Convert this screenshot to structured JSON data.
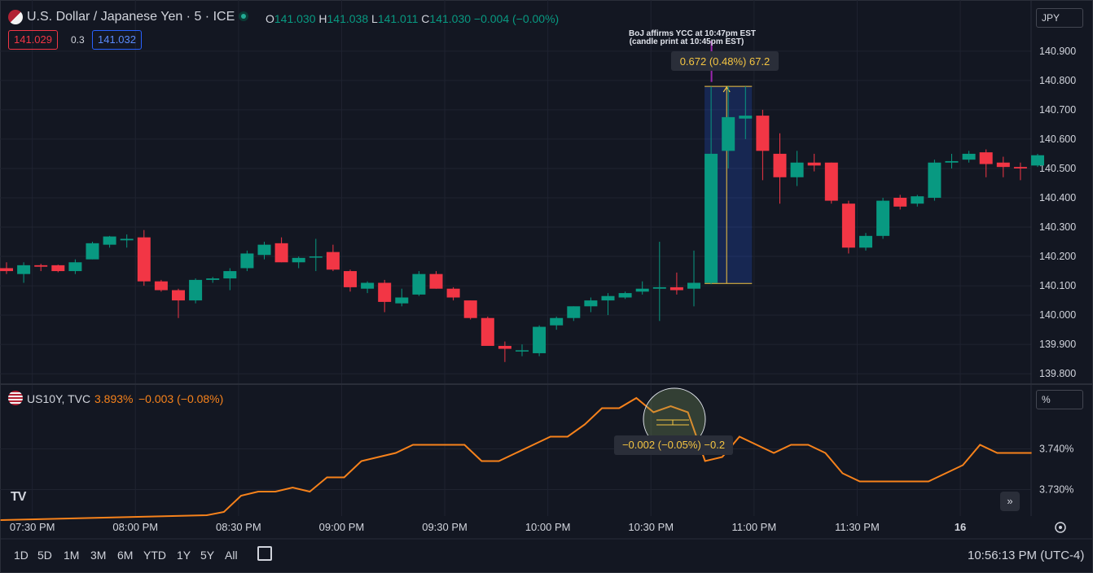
{
  "header": {
    "symbol_title": "U.S. Dollar / Japanese Yen · 5 · ICE",
    "ohlc": {
      "o_label": "O",
      "o": "141.030",
      "h_label": "H",
      "h": "141.038",
      "l_label": "L",
      "l": "141.011",
      "c_label": "C",
      "c": "141.030",
      "change": "−0.004 (−0.00%)"
    },
    "bid": "141.029",
    "spread": "0.3",
    "ask": "141.032",
    "currency_button": "JPY"
  },
  "sub_pane": {
    "symbol_title": "US10Y, TVC",
    "value": "3.893%",
    "change": "−0.003 (−0.08%)",
    "unit_button": "%"
  },
  "annotations": {
    "note_line1": "BoJ affirms YCC at 10:47pm EST",
    "note_line2": "(candle print at 10:45pm EST)",
    "measure_main": "0.672 (0.48%) 67.2",
    "measure_sub": "−0.002 (−0.05%) −0.2"
  },
  "footer": {
    "timeframes": [
      "1D",
      "5D",
      "1M",
      "3M",
      "6M",
      "YTD",
      "1Y",
      "5Y",
      "All"
    ],
    "clock": "10:56:13 PM (UTC-4)",
    "nav_glyph": "»"
  },
  "colors": {
    "background": "#131722",
    "up": "#089981",
    "down": "#f23645",
    "yield_line": "#f7821b",
    "measure": "#f5c542",
    "grid": "#1f2330"
  },
  "chart_data": [
    {
      "type": "candlestick",
      "title": "U.S. Dollar / Japanese Yen · 5 · ICE",
      "x_tick_labels": [
        "07:30 PM",
        "08:00 PM",
        "08:30 PM",
        "09:00 PM",
        "09:30 PM",
        "10:00 PM",
        "10:30 PM",
        "11:00 PM",
        "11:30 PM",
        "16"
      ],
      "y_tick_labels": [
        "140.900",
        "140.800",
        "140.700",
        "140.600",
        "140.500",
        "140.400",
        "140.300",
        "140.200",
        "140.100",
        "140.000",
        "139.900",
        "139.800"
      ],
      "ylim": [
        139.77,
        140.98
      ],
      "grid": true,
      "candles": [
        {
          "o": 140.16,
          "h": 140.18,
          "l": 140.14,
          "c": 140.15
        },
        {
          "o": 140.14,
          "h": 140.18,
          "l": 140.11,
          "c": 140.17
        },
        {
          "o": 140.17,
          "h": 140.175,
          "l": 140.15,
          "c": 140.165
        },
        {
          "o": 140.17,
          "h": 140.172,
          "l": 140.146,
          "c": 140.15
        },
        {
          "o": 140.15,
          "h": 140.19,
          "l": 140.14,
          "c": 140.18
        },
        {
          "o": 140.19,
          "h": 140.25,
          "l": 140.19,
          "c": 140.245
        },
        {
          "o": 140.24,
          "h": 140.27,
          "l": 140.23,
          "c": 140.268
        },
        {
          "o": 140.255,
          "h": 140.275,
          "l": 140.23,
          "c": 140.26
        },
        {
          "o": 140.265,
          "h": 140.29,
          "l": 140.1,
          "c": 140.115
        },
        {
          "o": 140.115,
          "h": 140.12,
          "l": 140.08,
          "c": 140.085
        },
        {
          "o": 140.085,
          "h": 140.09,
          "l": 139.99,
          "c": 140.05
        },
        {
          "o": 140.05,
          "h": 140.125,
          "l": 140.04,
          "c": 140.12
        },
        {
          "o": 140.12,
          "h": 140.13,
          "l": 140.11,
          "c": 140.125
        },
        {
          "o": 140.125,
          "h": 140.16,
          "l": 140.085,
          "c": 140.15
        },
        {
          "o": 140.16,
          "h": 140.22,
          "l": 140.15,
          "c": 140.21
        },
        {
          "o": 140.205,
          "h": 140.25,
          "l": 140.19,
          "c": 140.24
        },
        {
          "o": 140.245,
          "h": 140.265,
          "l": 140.18,
          "c": 140.18
        },
        {
          "o": 140.18,
          "h": 140.2,
          "l": 140.16,
          "c": 140.195
        },
        {
          "o": 140.2,
          "h": 140.26,
          "l": 140.15,
          "c": 140.2
        },
        {
          "o": 140.215,
          "h": 140.24,
          "l": 140.15,
          "c": 140.155
        },
        {
          "o": 140.15,
          "h": 140.155,
          "l": 140.08,
          "c": 140.095
        },
        {
          "o": 140.09,
          "h": 140.115,
          "l": 140.075,
          "c": 140.11
        },
        {
          "o": 140.11,
          "h": 140.12,
          "l": 140.01,
          "c": 140.045
        },
        {
          "o": 140.04,
          "h": 140.09,
          "l": 140.03,
          "c": 140.06
        },
        {
          "o": 140.07,
          "h": 140.15,
          "l": 140.065,
          "c": 140.14
        },
        {
          "o": 140.14,
          "h": 140.15,
          "l": 140.09,
          "c": 140.09
        },
        {
          "o": 140.09,
          "h": 140.095,
          "l": 140.05,
          "c": 140.06
        },
        {
          "o": 140.05,
          "h": 140.05,
          "l": 139.985,
          "c": 139.99
        },
        {
          "o": 139.99,
          "h": 139.995,
          "l": 139.9,
          "c": 139.895
        },
        {
          "o": 139.895,
          "h": 139.91,
          "l": 139.84,
          "c": 139.885
        },
        {
          "o": 139.88,
          "h": 139.9,
          "l": 139.86,
          "c": 139.88
        },
        {
          "o": 139.87,
          "h": 139.965,
          "l": 139.86,
          "c": 139.96
        },
        {
          "o": 139.965,
          "h": 139.995,
          "l": 139.95,
          "c": 139.99
        },
        {
          "o": 139.99,
          "h": 140.03,
          "l": 139.98,
          "c": 140.03
        },
        {
          "o": 140.03,
          "h": 140.06,
          "l": 140.01,
          "c": 140.05
        },
        {
          "o": 140.05,
          "h": 140.075,
          "l": 140.0,
          "c": 140.065
        },
        {
          "o": 140.06,
          "h": 140.08,
          "l": 140.055,
          "c": 140.075
        },
        {
          "o": 140.08,
          "h": 140.115,
          "l": 140.07,
          "c": 140.09
        },
        {
          "o": 140.09,
          "h": 140.25,
          "l": 139.98,
          "c": 140.095
        },
        {
          "o": 140.095,
          "h": 140.145,
          "l": 140.07,
          "c": 140.085
        },
        {
          "o": 140.09,
          "h": 140.22,
          "l": 140.03,
          "c": 140.11
        },
        {
          "o": 140.11,
          "h": 140.78,
          "l": 140.105,
          "c": 140.55
        },
        {
          "o": 140.56,
          "h": 140.78,
          "l": 140.5,
          "c": 140.675
        },
        {
          "o": 140.67,
          "h": 140.78,
          "l": 140.6,
          "c": 140.68
        },
        {
          "o": 140.68,
          "h": 140.7,
          "l": 140.46,
          "c": 140.56
        },
        {
          "o": 140.55,
          "h": 140.62,
          "l": 140.38,
          "c": 140.47
        },
        {
          "o": 140.47,
          "h": 140.56,
          "l": 140.44,
          "c": 140.52
        },
        {
          "o": 140.52,
          "h": 140.55,
          "l": 140.49,
          "c": 140.51
        },
        {
          "o": 140.52,
          "h": 140.52,
          "l": 140.38,
          "c": 140.39
        },
        {
          "o": 140.38,
          "h": 140.39,
          "l": 140.21,
          "c": 140.23
        },
        {
          "o": 140.23,
          "h": 140.28,
          "l": 140.22,
          "c": 140.27
        },
        {
          "o": 140.27,
          "h": 140.4,
          "l": 140.26,
          "c": 140.39
        },
        {
          "o": 140.4,
          "h": 140.41,
          "l": 140.36,
          "c": 140.37
        },
        {
          "o": 140.38,
          "h": 140.41,
          "l": 140.37,
          "c": 140.405
        },
        {
          "o": 140.4,
          "h": 140.53,
          "l": 140.39,
          "c": 140.52
        },
        {
          "o": 140.52,
          "h": 140.55,
          "l": 140.5,
          "c": 140.525
        },
        {
          "o": 140.53,
          "h": 140.56,
          "l": 140.52,
          "c": 140.55
        },
        {
          "o": 140.555,
          "h": 140.565,
          "l": 140.47,
          "c": 140.515
        },
        {
          "o": 140.52,
          "h": 140.54,
          "l": 140.47,
          "c": 140.505
        },
        {
          "o": 140.505,
          "h": 140.52,
          "l": 140.46,
          "c": 140.5
        },
        {
          "o": 140.51,
          "h": 140.55,
          "l": 140.505,
          "c": 140.545
        }
      ]
    },
    {
      "type": "line",
      "title": "US10Y, TVC",
      "y_tick_labels": [
        "3.740%",
        "3.730%"
      ],
      "ylim": [
        3.7235,
        3.7555
      ],
      "grid": true,
      "series": [
        {
          "values": [
            3.7225,
            3.7226,
            3.7227,
            3.7228,
            3.7229,
            3.723,
            3.7231,
            3.7232,
            3.7233,
            3.7234,
            3.7235,
            3.7236,
            3.7237,
            3.7245,
            3.7285,
            3.7295,
            3.7295,
            3.7305,
            3.7295,
            3.733,
            3.733,
            3.737,
            3.738,
            3.739,
            3.741,
            3.741,
            3.741,
            3.741,
            3.737,
            3.737,
            3.739,
            3.741,
            3.743,
            3.743,
            3.746,
            3.75,
            3.75,
            3.7525,
            3.749,
            3.7505,
            3.749,
            3.737,
            3.738,
            3.743,
            3.741,
            3.739,
            3.741,
            3.741,
            3.739,
            3.734,
            3.732,
            3.732,
            3.732,
            3.732,
            3.732,
            3.734,
            3.736,
            3.741,
            3.739,
            3.739,
            3.739
          ]
        }
      ]
    }
  ]
}
